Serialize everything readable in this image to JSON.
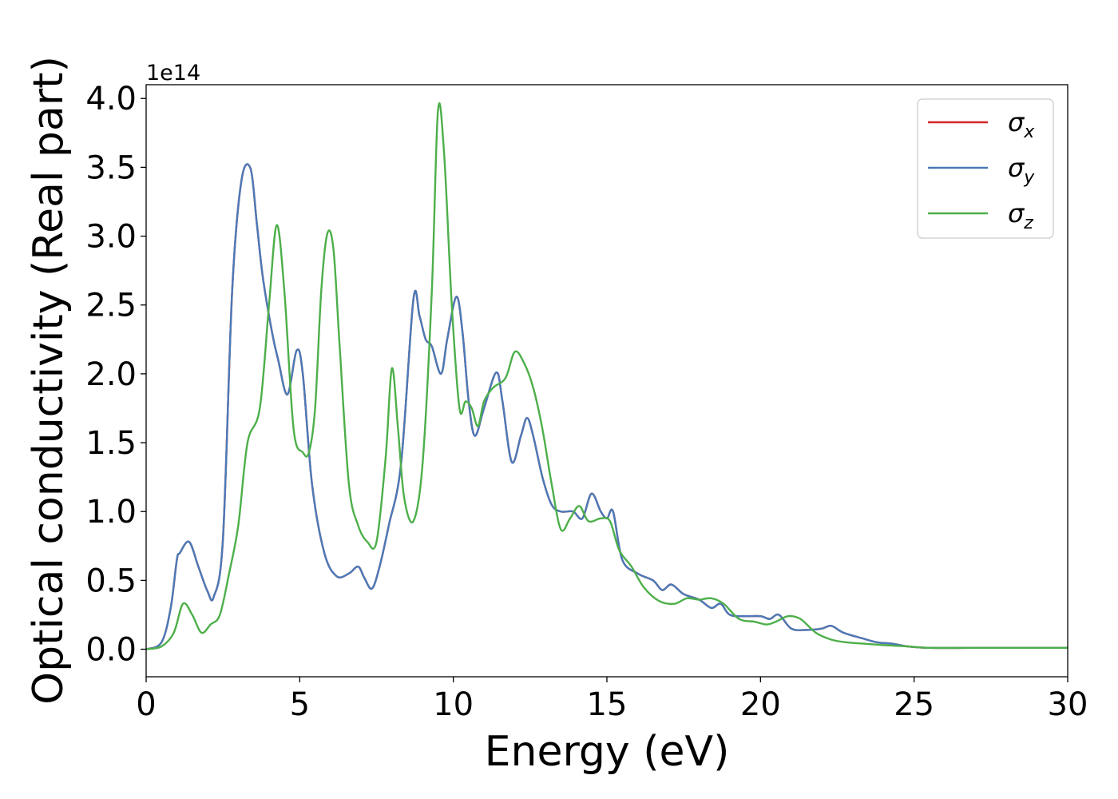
{
  "chart_data": {
    "type": "line",
    "xlabel": "Energy (eV)",
    "ylabel": "Optical conductivity (Real part)",
    "y_offset_label": "1e14",
    "xlim": [
      0,
      30
    ],
    "ylim": [
      -0.2,
      4.1
    ],
    "x_ticks": [
      0,
      5,
      10,
      15,
      20,
      25,
      30
    ],
    "x_tick_labels": [
      "0",
      "5",
      "10",
      "15",
      "20",
      "25",
      "30"
    ],
    "y_ticks": [
      0.0,
      0.5,
      1.0,
      1.5,
      2.0,
      2.5,
      3.0,
      3.5,
      4.0
    ],
    "y_tick_labels": [
      "0.0",
      "0.5",
      "1.0",
      "1.5",
      "2.0",
      "2.5",
      "3.0",
      "3.5",
      "4.0"
    ],
    "grid": false,
    "legend_position": "top-right",
    "series": [
      {
        "name": "σx",
        "symbol": "σ",
        "subscript": "x",
        "color": "#d62728",
        "x": [
          0,
          0.5,
          0.8,
          1.0,
          1.1,
          1.4,
          1.7,
          2.0,
          2.2,
          2.5,
          2.8,
          3.1,
          3.4,
          3.6,
          3.8,
          4.1,
          4.3,
          4.6,
          4.9,
          5.1,
          5.4,
          5.8,
          6.2,
          6.6,
          6.9,
          7.1,
          7.35,
          7.6,
          7.9,
          8.3,
          8.7,
          8.9,
          9.1,
          9.3,
          9.6,
          9.8,
          10.1,
          10.3,
          10.5,
          10.7,
          11.0,
          11.4,
          11.6,
          11.9,
          12.2,
          12.4,
          12.6,
          12.9,
          13.2,
          13.5,
          13.9,
          14.2,
          14.5,
          14.8,
          15.0,
          15.2,
          15.5,
          16.0,
          16.5,
          16.8,
          17.1,
          17.5,
          18.0,
          18.4,
          18.7,
          19.0,
          19.5,
          20.0,
          20.3,
          20.6,
          21.0,
          21.5,
          22.0,
          22.3,
          22.7,
          23.3,
          23.8,
          24.3,
          24.8,
          25.5,
          27.0,
          30.0
        ],
        "y": [
          0.0,
          0.05,
          0.3,
          0.65,
          0.7,
          0.78,
          0.6,
          0.42,
          0.38,
          0.8,
          2.6,
          3.4,
          3.49,
          3.1,
          2.7,
          2.3,
          2.1,
          1.85,
          2.17,
          2.0,
          1.2,
          0.7,
          0.53,
          0.55,
          0.6,
          0.52,
          0.44,
          0.6,
          0.9,
          1.35,
          2.54,
          2.42,
          2.25,
          2.2,
          2.0,
          2.25,
          2.56,
          2.3,
          1.8,
          1.55,
          1.75,
          2.01,
          1.8,
          1.36,
          1.55,
          1.68,
          1.55,
          1.25,
          1.05,
          1.0,
          1.0,
          0.95,
          1.13,
          1.0,
          0.95,
          1.0,
          0.65,
          0.55,
          0.5,
          0.43,
          0.47,
          0.4,
          0.36,
          0.3,
          0.33,
          0.25,
          0.24,
          0.24,
          0.22,
          0.25,
          0.15,
          0.14,
          0.15,
          0.17,
          0.12,
          0.08,
          0.05,
          0.04,
          0.02,
          0.01,
          0.01,
          0.01
        ]
      },
      {
        "name": "σy",
        "symbol": "σ",
        "subscript": "y",
        "color": "#4a7ab8",
        "x": [
          0,
          0.5,
          0.8,
          1.0,
          1.1,
          1.4,
          1.7,
          2.0,
          2.2,
          2.5,
          2.8,
          3.1,
          3.4,
          3.6,
          3.8,
          4.1,
          4.3,
          4.6,
          4.9,
          5.1,
          5.4,
          5.8,
          6.2,
          6.6,
          6.9,
          7.1,
          7.35,
          7.6,
          7.9,
          8.3,
          8.7,
          8.9,
          9.1,
          9.3,
          9.6,
          9.8,
          10.1,
          10.3,
          10.5,
          10.7,
          11.0,
          11.4,
          11.6,
          11.9,
          12.2,
          12.4,
          12.6,
          12.9,
          13.2,
          13.5,
          13.9,
          14.2,
          14.5,
          14.8,
          15.0,
          15.2,
          15.5,
          16.0,
          16.5,
          16.8,
          17.1,
          17.5,
          18.0,
          18.4,
          18.7,
          19.0,
          19.5,
          20.0,
          20.3,
          20.6,
          21.0,
          21.5,
          22.0,
          22.3,
          22.7,
          23.3,
          23.8,
          24.3,
          24.8,
          25.5,
          27.0,
          30.0
        ],
        "y": [
          0.0,
          0.05,
          0.3,
          0.65,
          0.7,
          0.78,
          0.6,
          0.42,
          0.38,
          0.8,
          2.6,
          3.4,
          3.49,
          3.1,
          2.7,
          2.3,
          2.1,
          1.85,
          2.17,
          2.0,
          1.2,
          0.7,
          0.53,
          0.55,
          0.6,
          0.52,
          0.44,
          0.6,
          0.9,
          1.35,
          2.54,
          2.42,
          2.25,
          2.2,
          2.0,
          2.25,
          2.56,
          2.3,
          1.8,
          1.55,
          1.75,
          2.01,
          1.8,
          1.36,
          1.55,
          1.68,
          1.55,
          1.25,
          1.05,
          1.0,
          1.0,
          0.95,
          1.13,
          1.0,
          0.95,
          1.0,
          0.65,
          0.55,
          0.5,
          0.43,
          0.47,
          0.4,
          0.36,
          0.3,
          0.33,
          0.25,
          0.24,
          0.24,
          0.22,
          0.25,
          0.15,
          0.14,
          0.15,
          0.17,
          0.12,
          0.08,
          0.05,
          0.04,
          0.02,
          0.01,
          0.01,
          0.01
        ]
      },
      {
        "name": "σz",
        "symbol": "σ",
        "subscript": "z",
        "color": "#4daf4a",
        "x": [
          0,
          0.5,
          0.9,
          1.2,
          1.5,
          1.8,
          2.1,
          2.4,
          2.7,
          3.0,
          3.3,
          3.7,
          4.0,
          4.25,
          4.5,
          4.8,
          5.1,
          5.3,
          5.5,
          5.7,
          5.9,
          6.1,
          6.3,
          6.6,
          6.9,
          7.2,
          7.5,
          7.8,
          8.0,
          8.2,
          8.4,
          8.7,
          9.0,
          9.3,
          9.5,
          9.7,
          9.95,
          10.2,
          10.4,
          10.6,
          10.8,
          11.0,
          11.3,
          11.7,
          12.0,
          12.3,
          12.6,
          12.9,
          13.2,
          13.5,
          13.8,
          14.1,
          14.4,
          14.8,
          15.1,
          15.4,
          15.8,
          16.2,
          16.7,
          17.2,
          17.6,
          18.0,
          18.4,
          18.8,
          19.3,
          19.8,
          20.2,
          20.5,
          20.9,
          21.3,
          21.8,
          22.3,
          22.8,
          23.4,
          24.0,
          24.8,
          25.5,
          27.0,
          30.0
        ],
        "y": [
          0.0,
          0.02,
          0.12,
          0.33,
          0.25,
          0.12,
          0.18,
          0.25,
          0.55,
          0.9,
          1.5,
          1.75,
          2.5,
          3.08,
          2.6,
          1.6,
          1.43,
          1.43,
          1.75,
          2.6,
          3.02,
          2.9,
          2.2,
          1.2,
          0.9,
          0.78,
          0.78,
          1.4,
          2.04,
          1.6,
          1.1,
          0.93,
          1.35,
          2.6,
          3.91,
          3.6,
          2.5,
          1.75,
          1.8,
          1.75,
          1.62,
          1.8,
          1.9,
          1.97,
          2.16,
          2.08,
          1.9,
          1.6,
          1.2,
          0.87,
          0.95,
          1.04,
          0.93,
          0.95,
          0.93,
          0.72,
          0.6,
          0.45,
          0.35,
          0.33,
          0.37,
          0.36,
          0.37,
          0.33,
          0.22,
          0.2,
          0.18,
          0.2,
          0.24,
          0.22,
          0.12,
          0.07,
          0.05,
          0.04,
          0.03,
          0.02,
          0.01,
          0.01,
          0.01
        ]
      }
    ]
  }
}
